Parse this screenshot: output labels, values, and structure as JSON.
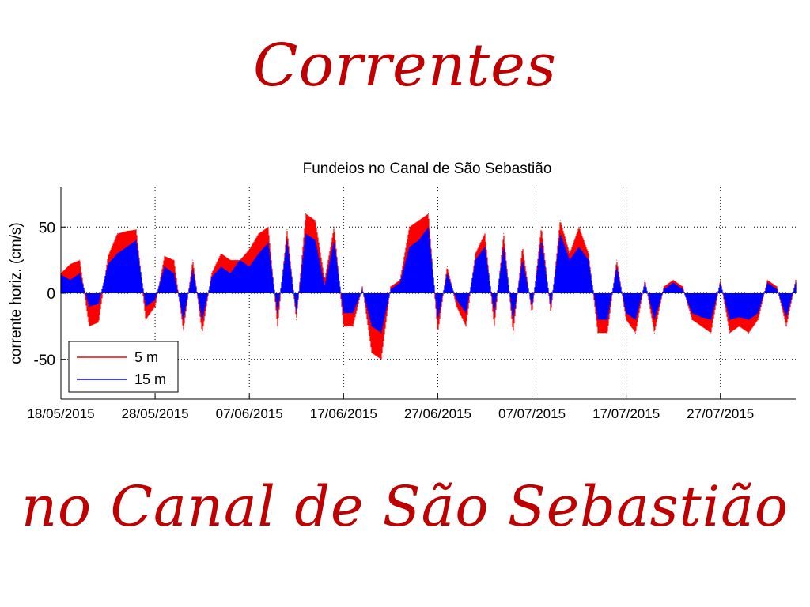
{
  "page": {
    "title_top": "Correntes",
    "title_bottom": "no Canal de São Sebastião"
  },
  "colors": {
    "title": "#c00000",
    "series_5m": "#ff0000",
    "series_15m": "#0000ff"
  },
  "chart_data": {
    "type": "area",
    "title": "Fundeios no Canal de São Sebastião",
    "xlabel": "",
    "ylabel": "corrente horiz. (cm/s)",
    "x_start": "18/05/2015",
    "x_end": "04/08/2015",
    "xticks": [
      "18/05/2015",
      "28/05/2015",
      "07/06/2015",
      "17/06/2015",
      "27/06/2015",
      "07/07/2015",
      "17/07/2015",
      "27/07/2015"
    ],
    "yticks": [
      -50,
      0,
      50
    ],
    "ylim": [
      -80,
      80
    ],
    "grid": true,
    "legend_position": "bottom-left",
    "x": [
      "18/05/2015",
      "19/05/2015",
      "20/05/2015",
      "21/05/2015",
      "22/05/2015",
      "23/05/2015",
      "24/05/2015",
      "25/05/2015",
      "26/05/2015",
      "27/05/2015",
      "28/05/2015",
      "29/05/2015",
      "30/05/2015",
      "31/05/2015",
      "01/06/2015",
      "02/06/2015",
      "03/06/2015",
      "04/06/2015",
      "05/06/2015",
      "06/06/2015",
      "07/06/2015",
      "08/06/2015",
      "09/06/2015",
      "10/06/2015",
      "11/06/2015",
      "12/06/2015",
      "13/06/2015",
      "14/06/2015",
      "15/06/2015",
      "16/06/2015",
      "17/06/2015",
      "18/06/2015",
      "19/06/2015",
      "20/06/2015",
      "21/06/2015",
      "22/06/2015",
      "23/06/2015",
      "24/06/2015",
      "25/06/2015",
      "26/06/2015",
      "27/06/2015",
      "28/06/2015",
      "29/06/2015",
      "30/06/2015",
      "01/07/2015",
      "02/07/2015",
      "03/07/2015",
      "04/07/2015",
      "05/07/2015",
      "06/07/2015",
      "07/07/2015",
      "08/07/2015",
      "09/07/2015",
      "10/07/2015",
      "11/07/2015",
      "12/07/2015",
      "13/07/2015",
      "14/07/2015",
      "15/07/2015",
      "16/07/2015",
      "17/07/2015",
      "18/07/2015",
      "19/07/2015",
      "20/07/2015",
      "21/07/2015",
      "22/07/2015",
      "23/07/2015",
      "24/07/2015",
      "25/07/2015",
      "26/07/2015",
      "27/07/2015",
      "28/07/2015",
      "29/07/2015",
      "30/07/2015",
      "31/07/2015",
      "01/08/2015",
      "02/08/2015",
      "03/08/2015",
      "04/08/2015"
    ],
    "series": [
      {
        "name": "5 m",
        "color": "#ff0000",
        "values": [
          15,
          22,
          25,
          -25,
          -22,
          28,
          45,
          47,
          48,
          -20,
          -10,
          28,
          25,
          -28,
          25,
          -30,
          15,
          30,
          25,
          25,
          33,
          45,
          50,
          -25,
          48,
          -20,
          60,
          55,
          10,
          50,
          -25,
          -25,
          5,
          -45,
          -50,
          5,
          10,
          50,
          55,
          60,
          -30,
          20,
          -10,
          -25,
          30,
          45,
          -25,
          45,
          -30,
          35,
          -15,
          50,
          -15,
          55,
          30,
          50,
          30,
          -30,
          -30,
          25,
          -20,
          -30,
          10,
          -30,
          5,
          10,
          5,
          -20,
          -25,
          -30,
          10,
          -30,
          -25,
          -30,
          -20,
          10,
          5,
          -25,
          10
        ]
      },
      {
        "name": "15 m",
        "color": "#0000ff",
        "values": [
          14,
          10,
          15,
          -10,
          -8,
          22,
          30,
          35,
          40,
          -10,
          -5,
          20,
          15,
          -20,
          18,
          -20,
          12,
          20,
          15,
          25,
          20,
          30,
          38,
          -15,
          40,
          -15,
          45,
          40,
          5,
          40,
          -15,
          -15,
          3,
          -25,
          -30,
          3,
          8,
          35,
          40,
          50,
          -20,
          15,
          -5,
          -15,
          25,
          35,
          -15,
          35,
          -20,
          25,
          -10,
          40,
          -10,
          45,
          25,
          35,
          25,
          -20,
          -20,
          20,
          -15,
          -20,
          8,
          -20,
          3,
          8,
          3,
          -15,
          -18,
          -20,
          8,
          -20,
          -18,
          -20,
          -15,
          8,
          3,
          -18,
          8
        ]
      }
    ]
  }
}
